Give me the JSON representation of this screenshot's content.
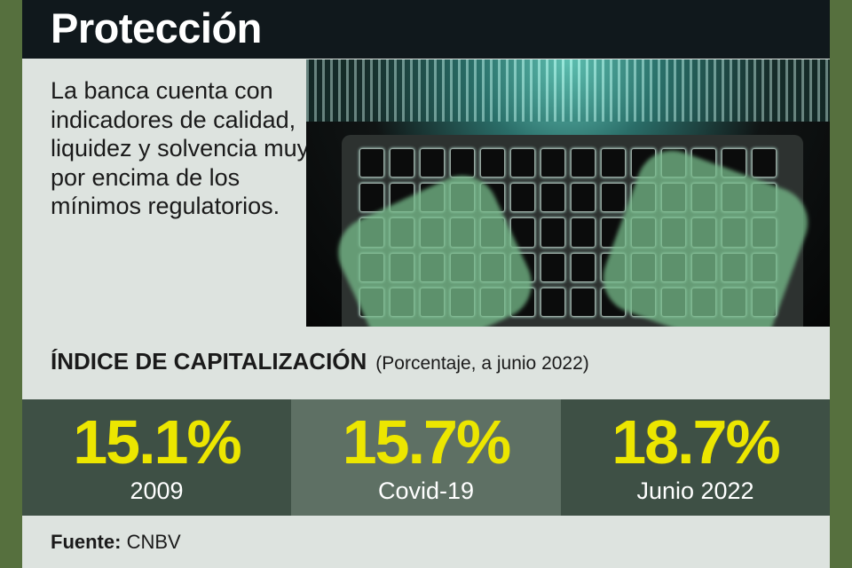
{
  "title": "Protección",
  "intro": "La banca cuenta con indicadores de calidad, liquidez y solvencia muy por encima de los mínimos regulatorios.",
  "index": {
    "title": "ÍNDICE DE CAPITALIZACIÓN",
    "subtitle": "(Porcentaje, a junio 2022)"
  },
  "stats": [
    {
      "value": "15.1%",
      "label": "2009",
      "bg": "#3e5045"
    },
    {
      "value": "15.7%",
      "label": "Covid-19",
      "bg": "#5e7064"
    },
    {
      "value": "18.7%",
      "label": "Junio 2022",
      "bg": "#3e5045"
    }
  ],
  "source": {
    "label": "Fuente:",
    "value": "CNBV"
  },
  "colors": {
    "accent": "#ece600",
    "border": "#56703e",
    "header": "#10181c"
  }
}
